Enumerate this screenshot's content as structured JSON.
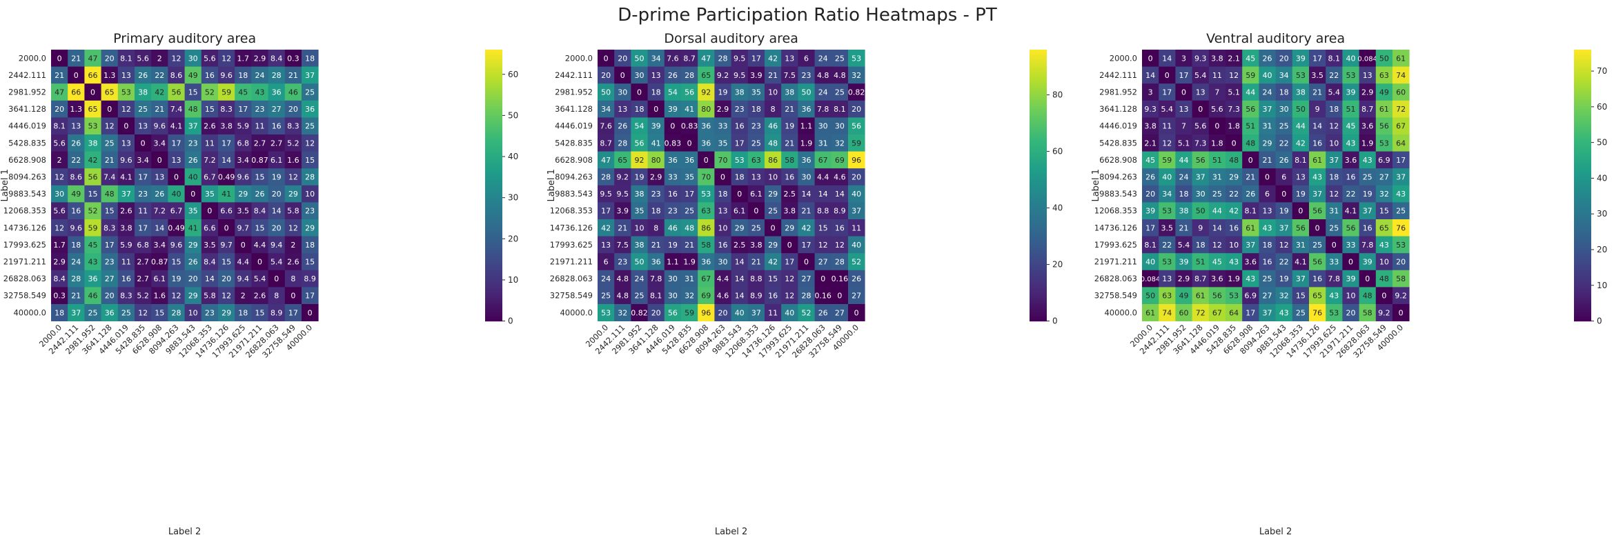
{
  "suptitle": "D-prime Participation Ratio Heatmaps - PT",
  "colormap": "viridis",
  "chart_data": [
    {
      "type": "heatmap",
      "title": "Primary auditory area",
      "xlabel": "Label 2",
      "ylabel": "Label 1",
      "x_categories": [
        "2000.0",
        "2442.111",
        "2981.952",
        "3641.128",
        "4446.019",
        "5428.835",
        "6628.908",
        "8094.263",
        "9883.543",
        "12068.353",
        "14736.126",
        "17993.625",
        "21971.211",
        "26828.063",
        "32758.549",
        "40000.0"
      ],
      "y_categories": [
        "2000.0",
        "2442.111",
        "2981.952",
        "3641.128",
        "4446.019",
        "5428.835",
        "6628.908",
        "8094.263",
        "9883.543",
        "12068.353",
        "14736.126",
        "17993.625",
        "21971.211",
        "26828.063",
        "32758.549",
        "40000.0"
      ],
      "colorbar": {
        "min": 0,
        "max": 66,
        "ticks": [
          0,
          10,
          20,
          30,
          40,
          50,
          60
        ]
      },
      "matrix": [
        [
          "0",
          "21",
          "47",
          "20",
          "8.1",
          "5.6",
          "2",
          "12",
          "30",
          "5.6",
          "12",
          "1.7",
          "2.9",
          "8.4",
          "0.3",
          "18"
        ],
        [
          "21",
          "0",
          "66",
          "1.3",
          "13",
          "26",
          "22",
          "8.6",
          "49",
          "16",
          "9.6",
          "18",
          "24",
          "28",
          "21",
          "37"
        ],
        [
          "47",
          "66",
          "0",
          "65",
          "53",
          "38",
          "42",
          "56",
          "15",
          "52",
          "59",
          "45",
          "43",
          "36",
          "46",
          "25"
        ],
        [
          "20",
          "1.3",
          "65",
          "0",
          "12",
          "25",
          "21",
          "7.4",
          "48",
          "15",
          "8.3",
          "17",
          "23",
          "27",
          "20",
          "36"
        ],
        [
          "8.1",
          "13",
          "53",
          "12",
          "0",
          "13",
          "9.6",
          "4.1",
          "37",
          "2.6",
          "3.8",
          "5.9",
          "11",
          "16",
          "8.3",
          "25"
        ],
        [
          "5.6",
          "26",
          "38",
          "25",
          "13",
          "0",
          "3.4",
          "17",
          "23",
          "11",
          "17",
          "6.8",
          "2.7",
          "2.7",
          "5.2",
          "12"
        ],
        [
          "2",
          "22",
          "42",
          "21",
          "9.6",
          "3.4",
          "0",
          "13",
          "26",
          "7.2",
          "14",
          "3.4",
          "0.87",
          "6.1",
          "1.6",
          "15"
        ],
        [
          "12",
          "8.6",
          "56",
          "7.4",
          "4.1",
          "17",
          "13",
          "0",
          "40",
          "6.7",
          "0.49",
          "9.6",
          "15",
          "19",
          "12",
          "28"
        ],
        [
          "30",
          "49",
          "15",
          "48",
          "37",
          "23",
          "26",
          "40",
          "0",
          "35",
          "41",
          "29",
          "26",
          "20",
          "29",
          "10"
        ],
        [
          "5.6",
          "16",
          "52",
          "15",
          "2.6",
          "11",
          "7.2",
          "6.7",
          "35",
          "0",
          "6.6",
          "3.5",
          "8.4",
          "14",
          "5.8",
          "23"
        ],
        [
          "12",
          "9.6",
          "59",
          "8.3",
          "3.8",
          "17",
          "14",
          "0.49",
          "41",
          "6.6",
          "0",
          "9.7",
          "15",
          "20",
          "12",
          "29"
        ],
        [
          "1.7",
          "18",
          "45",
          "17",
          "5.9",
          "6.8",
          "3.4",
          "9.6",
          "29",
          "3.5",
          "9.7",
          "0",
          "4.4",
          "9.4",
          "2",
          "18"
        ],
        [
          "2.9",
          "24",
          "43",
          "23",
          "11",
          "2.7",
          "0.87",
          "15",
          "26",
          "8.4",
          "15",
          "4.4",
          "0",
          "5.4",
          "2.6",
          "15"
        ],
        [
          "8.4",
          "28",
          "36",
          "27",
          "16",
          "2.7",
          "6.1",
          "19",
          "20",
          "14",
          "20",
          "9.4",
          "5.4",
          "0",
          "8",
          "8.9"
        ],
        [
          "0.3",
          "21",
          "46",
          "20",
          "8.3",
          "5.2",
          "1.6",
          "12",
          "29",
          "5.8",
          "12",
          "2",
          "2.6",
          "8",
          "0",
          "17"
        ],
        [
          "18",
          "37",
          "25",
          "36",
          "25",
          "12",
          "15",
          "28",
          "10",
          "23",
          "29",
          "18",
          "15",
          "8.9",
          "17",
          "0"
        ]
      ]
    },
    {
      "type": "heatmap",
      "title": "Dorsal auditory area",
      "xlabel": "Label 2",
      "ylabel": "Label 1",
      "x_categories": [
        "2000.0",
        "2442.111",
        "2981.952",
        "3641.128",
        "4446.019",
        "5428.835",
        "6628.908",
        "8094.263",
        "9883.543",
        "12068.353",
        "14736.126",
        "17993.625",
        "21971.211",
        "26828.063",
        "32758.549",
        "40000.0"
      ],
      "y_categories": [
        "2000.0",
        "2442.111",
        "2981.952",
        "3641.128",
        "4446.019",
        "5428.835",
        "6628.908",
        "8094.263",
        "9883.543",
        "12068.353",
        "14736.126",
        "17993.625",
        "21971.211",
        "26828.063",
        "32758.549",
        "40000.0"
      ],
      "colorbar": {
        "min": 0,
        "max": 96,
        "ticks": [
          0,
          20,
          40,
          60,
          80
        ]
      },
      "matrix": [
        [
          "0",
          "20",
          "50",
          "34",
          "7.6",
          "8.7",
          "47",
          "28",
          "9.5",
          "17",
          "42",
          "13",
          "6",
          "24",
          "25",
          "53"
        ],
        [
          "20",
          "0",
          "30",
          "13",
          "26",
          "28",
          "65",
          "9.2",
          "9.5",
          "3.9",
          "21",
          "7.5",
          "23",
          "4.8",
          "4.8",
          "32"
        ],
        [
          "50",
          "30",
          "0",
          "18",
          "54",
          "56",
          "92",
          "19",
          "38",
          "35",
          "10",
          "38",
          "50",
          "24",
          "25",
          "0.82"
        ],
        [
          "34",
          "13",
          "18",
          "0",
          "39",
          "41",
          "80",
          "2.9",
          "23",
          "18",
          "8",
          "21",
          "36",
          "7.8",
          "8.1",
          "20"
        ],
        [
          "7.6",
          "26",
          "54",
          "39",
          "0",
          "0.83",
          "36",
          "33",
          "16",
          "23",
          "46",
          "19",
          "1.1",
          "30",
          "30",
          "56"
        ],
        [
          "8.7",
          "28",
          "56",
          "41",
          "0.83",
          "0",
          "36",
          "35",
          "17",
          "25",
          "48",
          "21",
          "1.9",
          "31",
          "32",
          "59"
        ],
        [
          "47",
          "65",
          "92",
          "80",
          "36",
          "36",
          "0",
          "70",
          "53",
          "63",
          "86",
          "58",
          "36",
          "67",
          "69",
          "96"
        ],
        [
          "28",
          "9.2",
          "19",
          "2.9",
          "33",
          "35",
          "70",
          "0",
          "18",
          "13",
          "10",
          "16",
          "30",
          "4.4",
          "4.6",
          "20"
        ],
        [
          "9.5",
          "9.5",
          "38",
          "23",
          "16",
          "17",
          "53",
          "18",
          "0",
          "6.1",
          "29",
          "2.5",
          "14",
          "14",
          "14",
          "40"
        ],
        [
          "17",
          "3.9",
          "35",
          "18",
          "23",
          "25",
          "63",
          "13",
          "6.1",
          "0",
          "25",
          "3.8",
          "21",
          "8.8",
          "8.9",
          "37"
        ],
        [
          "42",
          "21",
          "10",
          "8",
          "46",
          "48",
          "86",
          "10",
          "29",
          "25",
          "0",
          "29",
          "42",
          "15",
          "16",
          "11"
        ],
        [
          "13",
          "7.5",
          "38",
          "21",
          "19",
          "21",
          "58",
          "16",
          "2.5",
          "3.8",
          "29",
          "0",
          "17",
          "12",
          "12",
          "40"
        ],
        [
          "6",
          "23",
          "50",
          "36",
          "1.1",
          "1.9",
          "36",
          "30",
          "14",
          "21",
          "42",
          "17",
          "0",
          "27",
          "28",
          "52"
        ],
        [
          "24",
          "4.8",
          "24",
          "7.8",
          "30",
          "31",
          "67",
          "4.4",
          "14",
          "8.8",
          "15",
          "12",
          "27",
          "0",
          "0.16",
          "26"
        ],
        [
          "25",
          "4.8",
          "25",
          "8.1",
          "30",
          "32",
          "69",
          "4.6",
          "14",
          "8.9",
          "16",
          "12",
          "28",
          "0.16",
          "0",
          "27"
        ],
        [
          "53",
          "32",
          "0.82",
          "20",
          "56",
          "59",
          "96",
          "20",
          "40",
          "37",
          "11",
          "40",
          "52",
          "26",
          "27",
          "0"
        ]
      ]
    },
    {
      "type": "heatmap",
      "title": "Ventral auditory area",
      "xlabel": "Label 2",
      "ylabel": "Label 1",
      "x_categories": [
        "2000.0",
        "2442.111",
        "2981.952",
        "3641.128",
        "4446.019",
        "5428.835",
        "6628.908",
        "8094.263",
        "9883.543",
        "12068.353",
        "14736.126",
        "17993.625",
        "21971.211",
        "26828.063",
        "32758.549",
        "40000.0"
      ],
      "y_categories": [
        "2000.0",
        "2442.111",
        "2981.952",
        "3641.128",
        "4446.019",
        "5428.835",
        "6628.908",
        "8094.263",
        "9883.543",
        "12068.353",
        "14736.126",
        "17993.625",
        "21971.211",
        "26828.063",
        "32758.549",
        "40000.0"
      ],
      "colorbar": {
        "min": 0,
        "max": 76,
        "ticks": [
          0,
          10,
          20,
          30,
          40,
          50,
          60,
          70
        ]
      },
      "matrix": [
        [
          "0",
          "14",
          "3",
          "9.3",
          "3.8",
          "2.1",
          "45",
          "26",
          "20",
          "39",
          "17",
          "8.1",
          "40",
          "0.084",
          "50",
          "61"
        ],
        [
          "14",
          "0",
          "17",
          "5.4",
          "11",
          "12",
          "59",
          "40",
          "34",
          "53",
          "3.5",
          "22",
          "53",
          "13",
          "63",
          "74"
        ],
        [
          "3",
          "17",
          "0",
          "13",
          "7",
          "5.1",
          "44",
          "24",
          "18",
          "38",
          "21",
          "5.4",
          "39",
          "2.9",
          "49",
          "60"
        ],
        [
          "9.3",
          "5.4",
          "13",
          "0",
          "5.6",
          "7.3",
          "56",
          "37",
          "30",
          "50",
          "9",
          "18",
          "51",
          "8.7",
          "61",
          "72"
        ],
        [
          "3.8",
          "11",
          "7",
          "5.6",
          "0",
          "1.8",
          "51",
          "31",
          "25",
          "44",
          "14",
          "12",
          "45",
          "3.6",
          "56",
          "67"
        ],
        [
          "2.1",
          "12",
          "5.1",
          "7.3",
          "1.8",
          "0",
          "48",
          "29",
          "22",
          "42",
          "16",
          "10",
          "43",
          "1.9",
          "53",
          "64"
        ],
        [
          "45",
          "59",
          "44",
          "56",
          "51",
          "48",
          "0",
          "21",
          "26",
          "8.1",
          "61",
          "37",
          "3.6",
          "43",
          "6.9",
          "17"
        ],
        [
          "26",
          "40",
          "24",
          "37",
          "31",
          "29",
          "21",
          "0",
          "6",
          "13",
          "43",
          "18",
          "16",
          "25",
          "27",
          "37"
        ],
        [
          "20",
          "34",
          "18",
          "30",
          "25",
          "22",
          "26",
          "6",
          "0",
          "19",
          "37",
          "12",
          "22",
          "19",
          "32",
          "43"
        ],
        [
          "39",
          "53",
          "38",
          "50",
          "44",
          "42",
          "8.1",
          "13",
          "19",
          "0",
          "56",
          "31",
          "4.1",
          "37",
          "15",
          "25"
        ],
        [
          "17",
          "3.5",
          "21",
          "9",
          "14",
          "16",
          "61",
          "43",
          "37",
          "56",
          "0",
          "25",
          "56",
          "16",
          "65",
          "76"
        ],
        [
          "8.1",
          "22",
          "5.4",
          "18",
          "12",
          "10",
          "37",
          "18",
          "12",
          "31",
          "25",
          "0",
          "33",
          "7.8",
          "43",
          "53"
        ],
        [
          "40",
          "53",
          "39",
          "51",
          "45",
          "43",
          "3.6",
          "16",
          "22",
          "4.1",
          "56",
          "33",
          "0",
          "39",
          "10",
          "20"
        ],
        [
          "0.084",
          "13",
          "2.9",
          "8.7",
          "3.6",
          "1.9",
          "43",
          "25",
          "19",
          "37",
          "16",
          "7.8",
          "39",
          "0",
          "48",
          "58"
        ],
        [
          "50",
          "63",
          "49",
          "61",
          "56",
          "53",
          "6.9",
          "27",
          "32",
          "15",
          "65",
          "43",
          "10",
          "48",
          "0",
          "9.2"
        ],
        [
          "61",
          "74",
          "60",
          "72",
          "67",
          "64",
          "17",
          "37",
          "43",
          "25",
          "76",
          "53",
          "20",
          "58",
          "9.2",
          "0"
        ]
      ]
    }
  ]
}
